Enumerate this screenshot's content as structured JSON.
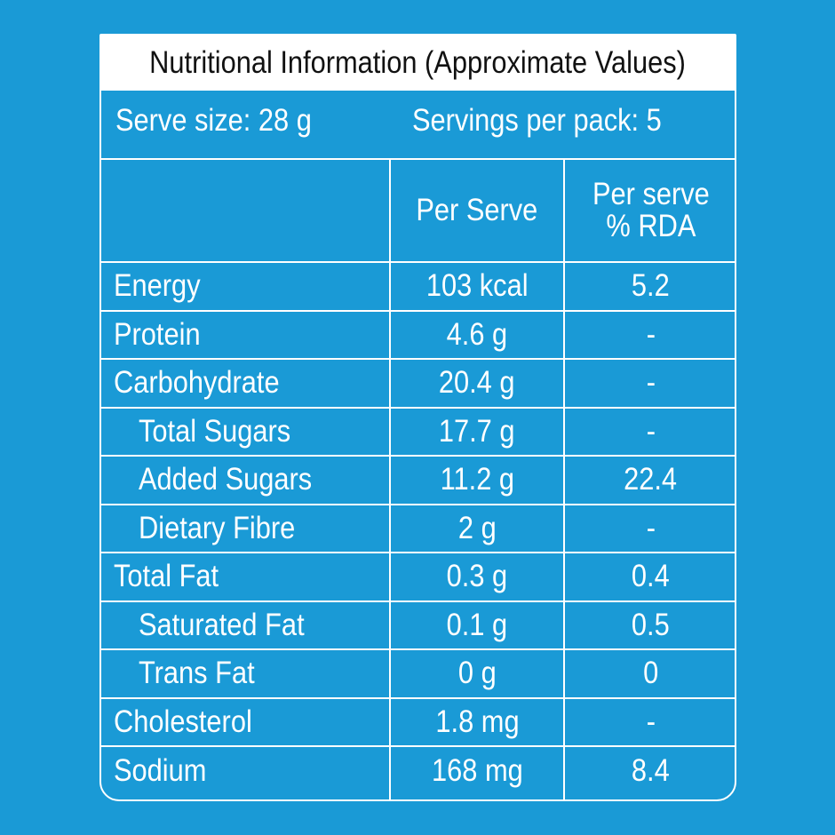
{
  "title": "Nutritional Information (Approximate Values)",
  "serve_size": "Serve size: 28 g",
  "servings_per_pack": "Servings per pack: 5",
  "columns": {
    "per_serve": "Per Serve",
    "rda_line1": "Per serve",
    "rda_line2": "% RDA"
  },
  "rows": [
    {
      "name": "Energy",
      "value": "103 kcal",
      "rda": "5.2",
      "indent": false
    },
    {
      "name": "Protein",
      "value": "4.6 g",
      "rda": "-",
      "indent": false
    },
    {
      "name": "Carbohydrate",
      "value": "20.4 g",
      "rda": "-",
      "indent": false
    },
    {
      "name": "Total Sugars",
      "value": "17.7 g",
      "rda": "-",
      "indent": true
    },
    {
      "name": "Added Sugars",
      "value": "11.2 g",
      "rda": "22.4",
      "indent": true
    },
    {
      "name": "Dietary Fibre",
      "value": "2 g",
      "rda": "-",
      "indent": true
    },
    {
      "name": "Total Fat",
      "value": "0.3 g",
      "rda": "0.4",
      "indent": false
    },
    {
      "name": "Saturated Fat",
      "value": "0.1 g",
      "rda": "0.5",
      "indent": true
    },
    {
      "name": "Trans Fat",
      "value": "0 g",
      "rda": "0",
      "indent": true
    },
    {
      "name": "Cholesterol",
      "value": "1.8 mg",
      "rda": "-",
      "indent": false
    },
    {
      "name": "Sodium",
      "value": "168 mg",
      "rda": "8.4",
      "indent": false
    }
  ],
  "colors": {
    "background": "#1a9ad6",
    "text": "#ffffff",
    "title_bar": "#ffffff",
    "title_text": "#111111"
  }
}
